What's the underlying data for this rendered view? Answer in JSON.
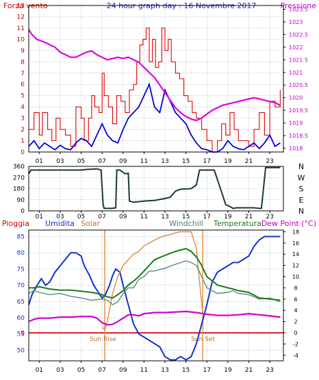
{
  "colors": {
    "wind": "#e00000",
    "wind_avg": "#0000e0",
    "pressure": "#e000e0",
    "direction": "#1a3a2a",
    "rain": "#d00000",
    "humidity": "#1030d0",
    "solar": "#e08a3a",
    "windchill": "#5a8a7a",
    "temperature": "#1a7a1a",
    "dewpoint": "#d000d0",
    "grid": "#7a8fa0"
  },
  "chart_data": [
    {
      "type": "line",
      "title": "24 hour graph day : 16 Novembre 2017",
      "ylabel_left": "Forza vento",
      "ylabel_right": "Pressione",
      "yticks_left": [
        "0",
        "1",
        "2",
        "3",
        "4",
        "5",
        "6",
        "7",
        "8",
        "9",
        "10",
        "11",
        "12",
        "13"
      ],
      "yticks_right": [
        "1018",
        "1018.5",
        "1019",
        "1019.5",
        "1020",
        "1020.5",
        "1021",
        "1021.5",
        "1022",
        "1022.5",
        "1023",
        "1023.5"
      ],
      "xticks": [
        "01",
        "03",
        "05",
        "07",
        "09",
        "11",
        "13",
        "15",
        "17",
        "19",
        "21",
        "23"
      ],
      "ylim_left": [
        0,
        13
      ],
      "ylim_right": [
        1017.85,
        1023.65
      ],
      "xlim": [
        0,
        24.3
      ],
      "series": [
        {
          "key": "wind_gust",
          "x": [
            0,
            0.5,
            1,
            1.3,
            1.8,
            2.2,
            2.6,
            3,
            3.5,
            4,
            4.5,
            5,
            5.3,
            5.7,
            6,
            6.3,
            6.7,
            7,
            7.2,
            7.6,
            8,
            8.4,
            8.8,
            9.2,
            9.6,
            10,
            10.3,
            10.6,
            10.9,
            11.2,
            11.5,
            11.8,
            12.1,
            12.4,
            12.7,
            13,
            13.3,
            13.6,
            14,
            14.4,
            14.8,
            15.2,
            15.6,
            16,
            16.5,
            17,
            17.5,
            18,
            18.4,
            18.8,
            19.2,
            19.6,
            20,
            20.5,
            21,
            21.5,
            22,
            22.5,
            23,
            23.5,
            24
          ],
          "y": [
            2,
            3.5,
            1.5,
            3.5,
            2,
            1,
            3,
            2,
            1.5,
            0.5,
            4,
            3,
            1,
            3,
            5,
            4,
            3.5,
            7,
            5,
            4,
            2.5,
            5,
            4.5,
            3.5,
            5.5,
            6,
            8,
            9.5,
            10,
            11,
            8,
            10,
            7.5,
            8,
            11,
            9,
            10,
            8,
            7,
            6.5,
            5,
            4.5,
            3.5,
            3,
            2,
            1,
            0,
            1,
            2.5,
            1.5,
            3.5,
            2,
            1,
            1,
            0.5,
            2,
            3.5,
            1.5,
            4.5,
            4,
            5.5
          ]
        },
        {
          "key": "wind_avg",
          "x": [
            0,
            0.5,
            1,
            1.5,
            2,
            2.5,
            3,
            3.5,
            4,
            4.5,
            5,
            5.5,
            6,
            6.5,
            7,
            7.5,
            8,
            8.5,
            9,
            9.5,
            10,
            10.5,
            11,
            11.5,
            12,
            12.5,
            13,
            13.5,
            14,
            14.5,
            15,
            15.5,
            16,
            16.5,
            17,
            17.5,
            18,
            18.5,
            19,
            19.5,
            20,
            20.5,
            21,
            21.5,
            22,
            22.5,
            23,
            23.5,
            24
          ],
          "y": [
            0.5,
            1,
            0.3,
            0.8,
            0.5,
            0.2,
            0.6,
            0.3,
            0.2,
            0.8,
            1.2,
            1,
            0.5,
            1.5,
            2.5,
            1.5,
            1,
            0.8,
            2,
            3,
            3.5,
            4,
            5,
            6,
            4,
            3.5,
            5.5,
            4.5,
            3.5,
            3,
            2.5,
            1.5,
            0.8,
            0.3,
            0.2,
            0,
            0,
            0.3,
            1,
            0.5,
            0.3,
            0.2,
            0.5,
            0.8,
            0.3,
            0.8,
            1.5,
            0.5,
            0.8
          ]
        },
        {
          "key": "pressure",
          "x": [
            0,
            0.3,
            0.8,
            1.5,
            2,
            2.5,
            3,
            3.5,
            4,
            4.5,
            5,
            5.5,
            6,
            6.5,
            7,
            7.5,
            8,
            8.5,
            9,
            9.5,
            10,
            10.5,
            11,
            11.5,
            12,
            12.5,
            13,
            13.5,
            14,
            14.5,
            15,
            15.5,
            16,
            16.5,
            17,
            17.5,
            18,
            18.5,
            19,
            19.5,
            20,
            20.5,
            21,
            21.5,
            22,
            22.5,
            23,
            23.5,
            24
          ],
          "y": [
            1022.7,
            1022.5,
            1022.3,
            1022.2,
            1022.1,
            1022.0,
            1021.8,
            1021.7,
            1021.6,
            1021.6,
            1021.7,
            1021.8,
            1021.85,
            1021.7,
            1021.6,
            1021.5,
            1021.55,
            1021.6,
            1021.55,
            1021.6,
            1021.5,
            1021.4,
            1021.2,
            1021.0,
            1020.8,
            1020.5,
            1020.2,
            1019.9,
            1019.6,
            1019.4,
            1019.25,
            1019.15,
            1019.1,
            1019.2,
            1019.35,
            1019.5,
            1019.6,
            1019.7,
            1019.75,
            1019.8,
            1019.85,
            1019.9,
            1019.95,
            1020.0,
            1019.95,
            1019.9,
            1019.85,
            1019.8,
            1019.7
          ]
        }
      ]
    },
    {
      "type": "line",
      "title": "",
      "yticks": [
        "0",
        "90",
        "180",
        "270",
        "360"
      ],
      "ylabels_right": [
        "N",
        "W",
        "S",
        "E",
        "N"
      ],
      "xticks": [
        "01",
        "03",
        "05",
        "07",
        "09",
        "11",
        "13",
        "15",
        "17",
        "19",
        "21",
        "23"
      ],
      "ylim": [
        0,
        360
      ],
      "xlim": [
        0,
        24.3
      ],
      "series": [
        {
          "key": "direction",
          "x": [
            0,
            0.2,
            1,
            3,
            5,
            5.5,
            6.5,
            6.9,
            7.1,
            7.2,
            7.9,
            8.3,
            8.4,
            8.7,
            9.2,
            9.5,
            9.6,
            10,
            10.5,
            11,
            12,
            13,
            13.5,
            14,
            14.5,
            15.5,
            16,
            16.3,
            17.5,
            17.7,
            18.8,
            19.2,
            19.5,
            19.8,
            20.5,
            21.5,
            22,
            22.2,
            22.6,
            23.2,
            24
          ],
          "y": [
            300,
            330,
            330,
            330,
            330,
            335,
            340,
            330,
            50,
            20,
            20,
            25,
            330,
            330,
            300,
            305,
            80,
            70,
            75,
            80,
            85,
            100,
            110,
            160,
            175,
            180,
            210,
            330,
            330,
            330,
            50,
            35,
            20,
            25,
            25,
            25,
            20,
            20,
            350,
            350,
            350
          ]
        }
      ]
    },
    {
      "type": "line",
      "title": "",
      "legend": [
        "Pioggia",
        "Umidita",
        "Solar",
        "Windchill",
        "Temperatura",
        "Dew Point (°C)"
      ],
      "yticks_left": [
        "50",
        "55",
        "60",
        "65",
        "70",
        "75",
        "80",
        "85"
      ],
      "yticks_right": [
        "-4",
        "-2",
        "0",
        "2",
        "4",
        "6",
        "8",
        "10",
        "12",
        "14",
        "16",
        "18"
      ],
      "xticks": [
        "01",
        "03",
        "05",
        "07",
        "09",
        "11",
        "13",
        "15",
        "17",
        "19",
        "21",
        "23"
      ],
      "zero_label": "0",
      "annotations": [
        "Sun Rise",
        "Sun Set"
      ],
      "sunrise_x": 7.25,
      "sunset_x": 16.6,
      "rain_value": 0,
      "ylim_left": [
        46.7,
        87
      ],
      "ylim_right": [
        -5,
        18.3
      ],
      "xlim": [
        0,
        24.3
      ],
      "series": [
        {
          "key": "humidity",
          "axis": "left",
          "x": [
            0,
            0.3,
            0.8,
            1.2,
            1.6,
            2,
            2.5,
            3,
            3.5,
            4,
            4.5,
            5,
            5.3,
            5.8,
            6.2,
            6.6,
            7,
            7.3,
            7.7,
            8,
            8.3,
            8.7,
            9,
            9.5,
            10,
            10.5,
            11,
            11.5,
            12,
            12.5,
            13,
            13.5,
            14,
            14.5,
            15,
            15.5,
            16,
            16.5,
            17,
            17.5,
            18,
            18.5,
            19,
            19.5,
            20,
            20.5,
            21,
            21.5,
            22,
            22.5,
            23,
            23.5,
            24
          ],
          "y": [
            64,
            67,
            70,
            72,
            70,
            71,
            74,
            76,
            78,
            80,
            80,
            79,
            76,
            73,
            70,
            68,
            66,
            67,
            70,
            73,
            75,
            74,
            70,
            64,
            58,
            55,
            54,
            53,
            52,
            51,
            48,
            47,
            47,
            48,
            47,
            48,
            52,
            58,
            64,
            71,
            74,
            75,
            76,
            77,
            77,
            78,
            79,
            82,
            84,
            85,
            85,
            85,
            85
          ]
        },
        {
          "key": "solar",
          "axis": "right",
          "x": [
            7,
            7.25,
            7.5,
            8,
            8.5,
            9,
            9.5,
            10,
            10.5,
            11,
            11.5,
            12,
            12.5,
            13,
            13.5,
            14,
            14.5,
            15,
            15.5,
            16,
            16.3,
            16.6
          ],
          "y": [
            1,
            0.5,
            2,
            7,
            10,
            12,
            13,
            14,
            14.5,
            15.5,
            16,
            16.5,
            17,
            17.3,
            17.5,
            17.8,
            18,
            18,
            18,
            15,
            9,
            3.5
          ]
        },
        {
          "key": "windchill",
          "axis": "right",
          "x": [
            0,
            0.5,
            1,
            2,
            3,
            4,
            5,
            6,
            7,
            7.5,
            8,
            8.5,
            9,
            9.5,
            10,
            10.5,
            11,
            11.5,
            12,
            13,
            14,
            15,
            15.5,
            16,
            16.5,
            17,
            18,
            19,
            19.5,
            20,
            21,
            22,
            23,
            24
          ],
          "y": [
            7,
            7.5,
            7.2,
            6.8,
            7,
            6.5,
            6.2,
            5.8,
            6,
            5.8,
            5,
            5.5,
            7,
            8,
            8,
            9.5,
            10,
            11,
            11,
            11.5,
            12.2,
            12.8,
            12.5,
            12,
            10,
            8,
            7,
            7.2,
            7.5,
            7,
            6.8,
            6,
            6.2,
            5.5
          ]
        },
        {
          "key": "temperature",
          "axis": "right",
          "x": [
            0,
            0.5,
            1,
            2,
            3,
            4,
            5,
            6,
            6.5,
            7,
            7.5,
            8,
            8.5,
            9,
            9.5,
            10,
            10.5,
            11,
            11.5,
            12,
            13,
            14,
            15,
            15.5,
            16,
            16.5,
            17,
            18,
            19,
            19.5,
            20,
            21,
            22,
            23,
            24
          ],
          "y": [
            8,
            8,
            8.2,
            7.8,
            7.6,
            7.6,
            7.4,
            7.2,
            7,
            6.8,
            6.4,
            6.2,
            6.8,
            7.5,
            8.5,
            9.2,
            10,
            11,
            12,
            13,
            13.8,
            14.5,
            15,
            14.5,
            13.5,
            12,
            10,
            8.5,
            8,
            7.8,
            7.5,
            7.2,
            6.2,
            6,
            5.8
          ]
        },
        {
          "key": "dewpoint",
          "axis": "right",
          "x": [
            0,
            0.5,
            1,
            2,
            3,
            4,
            5,
            6,
            6.5,
            7,
            7.5,
            8,
            8.5,
            9,
            9.5,
            10,
            10.5,
            11,
            12,
            13,
            14,
            15,
            16,
            17,
            18,
            19,
            20,
            21,
            22,
            23,
            24
          ],
          "y": [
            2,
            2.4,
            2.6,
            2.6,
            2.8,
            2.8,
            2.9,
            2.9,
            2.6,
            1.8,
            1.4,
            1.5,
            2,
            2.6,
            3.2,
            3.2,
            3,
            3.4,
            3.6,
            3.6,
            3.7,
            3.8,
            3.6,
            3.3,
            3.1,
            3.1,
            3.2,
            3.4,
            3.2,
            3,
            2.8
          ]
        }
      ]
    }
  ]
}
